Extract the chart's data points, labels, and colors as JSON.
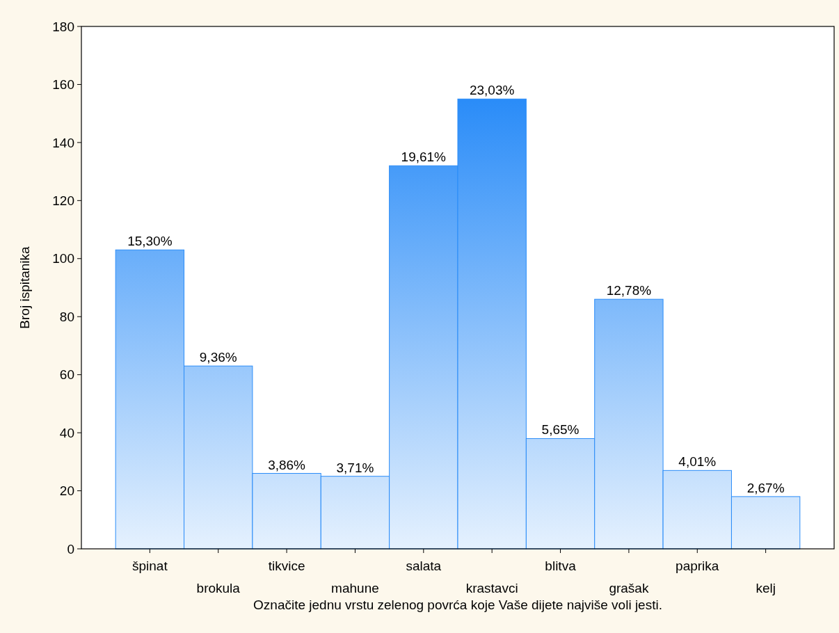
{
  "chart_data": {
    "type": "bar",
    "xlabel": "Označite jednu vrstu zelenog povrća koje Vaše dijete najviše voli jesti.",
    "ylabel": "Broj ispitanika",
    "categories": [
      "špinat",
      "brokula",
      "tikvice",
      "mahune",
      "salata",
      "krastavci",
      "blitva",
      "grašak",
      "paprika",
      "kelj"
    ],
    "values": [
      103,
      63,
      26,
      25,
      132,
      155,
      38,
      86,
      27,
      18
    ],
    "annotations": [
      {
        "text": "15,30%",
        "x": "špinat",
        "y": 103
      },
      {
        "text": "9,36%",
        "x": "brokula",
        "y": 63
      },
      {
        "text": "3,86%",
        "x": "tikvice",
        "y": 26
      },
      {
        "text": "3,71%",
        "x": "mahune",
        "y": 25
      },
      {
        "text": "19,61%",
        "x": "salata",
        "y": 132
      },
      {
        "text": "23,03%",
        "x": "krastavci",
        "y": 155
      },
      {
        "text": "5,65%",
        "x": "blitva",
        "y": 38
      },
      {
        "text": "12,78%",
        "x": "grašak",
        "y": 86
      },
      {
        "text": "4,01%",
        "x": "paprika",
        "y": 27
      },
      {
        "text": "2,67%",
        "x": "kelj",
        "y": 18
      }
    ],
    "color": "#2a8cf8",
    "ylim": [
      0,
      180
    ],
    "yticks": [
      0,
      20,
      40,
      60,
      80,
      100,
      120,
      140,
      160,
      180
    ],
    "grid": false
  }
}
